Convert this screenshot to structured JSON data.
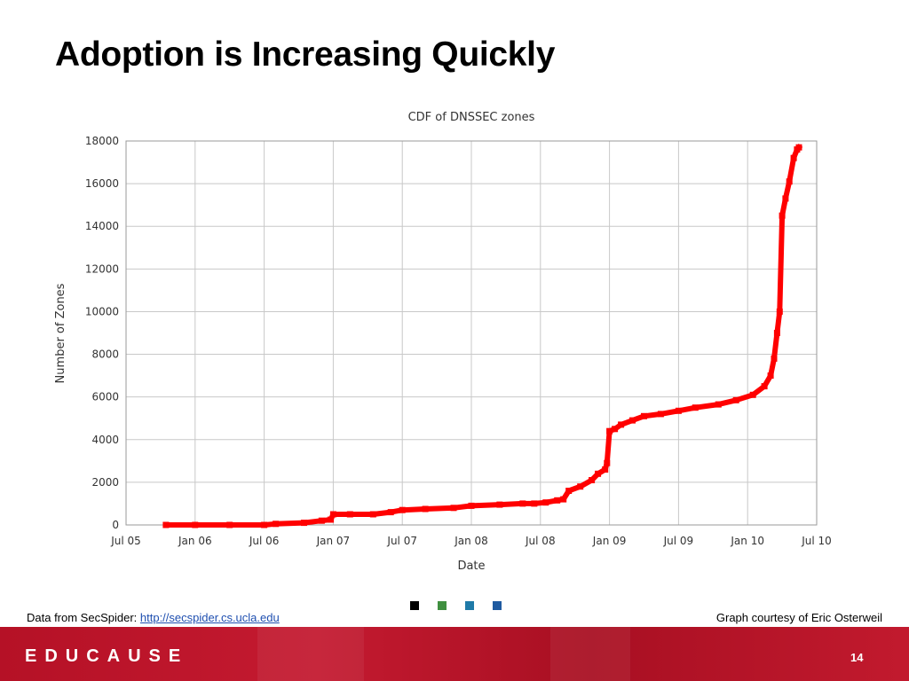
{
  "slide": {
    "title": "Adoption is Increasing Quickly",
    "source_label": "Data from SecSpider: ",
    "source_link": "http://secspider.cs.ucla.edu",
    "credit": "Graph courtesy of Eric Osterweil",
    "brand": "EDUCAUSE",
    "page_number": "14",
    "legend_colors": [
      "#000000",
      "#3f8f3f",
      "#1f7aa8",
      "#1f5aa0"
    ]
  },
  "chart_data": {
    "type": "line",
    "title": "CDF of DNSSEC zones",
    "xlabel": "Date",
    "ylabel": "Number of Zones",
    "x_ticks": [
      "Jul 05",
      "Jan 06",
      "Jul 06",
      "Jan 07",
      "Jul 07",
      "Jan 08",
      "Jul 08",
      "Jan 09",
      "Jul 09",
      "Jan 10",
      "Jul 10"
    ],
    "xlim": [
      "2005-07",
      "2010-07"
    ],
    "ylim": [
      0,
      18000
    ],
    "y_ticks": [
      0,
      2000,
      4000,
      6000,
      8000,
      10000,
      12000,
      14000,
      16000,
      18000
    ],
    "grid": true,
    "line_color": "#ff0000",
    "series": [
      {
        "x": [
          "2005-10-15",
          "2006-01-01",
          "2006-04-01",
          "2006-07-01",
          "2006-08-01",
          "2006-10-15",
          "2006-12-01",
          "2006-12-25",
          "2007-01-01",
          "2007-02-15",
          "2007-04-15",
          "2007-06-01",
          "2007-07-01",
          "2007-09-01",
          "2007-11-15",
          "2008-01-01",
          "2008-03-15",
          "2008-05-15",
          "2008-06-15",
          "2008-07-15",
          "2008-08-15",
          "2008-09-01",
          "2008-09-15",
          "2008-10-15",
          "2008-11-15",
          "2008-12-01",
          "2008-12-20",
          "2008-12-25",
          "2009-01-01",
          "2009-01-15",
          "2009-02-01",
          "2009-03-01",
          "2009-04-01",
          "2009-05-15",
          "2009-07-01",
          "2009-08-15",
          "2009-10-15",
          "2009-12-01",
          "2010-01-15",
          "2010-02-15",
          "2010-03-01",
          "2010-03-10",
          "2010-03-18",
          "2010-03-25",
          "2010-04-01",
          "2010-04-10",
          "2010-04-20",
          "2010-05-01",
          "2010-05-10",
          "2010-05-15"
        ],
        "y": [
          0,
          0,
          0,
          0,
          50,
          100,
          200,
          250,
          500,
          500,
          500,
          600,
          700,
          750,
          800,
          900,
          950,
          1000,
          1000,
          1050,
          1150,
          1200,
          1600,
          1800,
          2100,
          2400,
          2600,
          2900,
          4400,
          4500,
          4700,
          4900,
          5100,
          5200,
          5350,
          5500,
          5650,
          5850,
          6100,
          6500,
          7000,
          7800,
          9000,
          10000,
          14500,
          15300,
          16100,
          17200,
          17600,
          17700
        ]
      }
    ]
  }
}
